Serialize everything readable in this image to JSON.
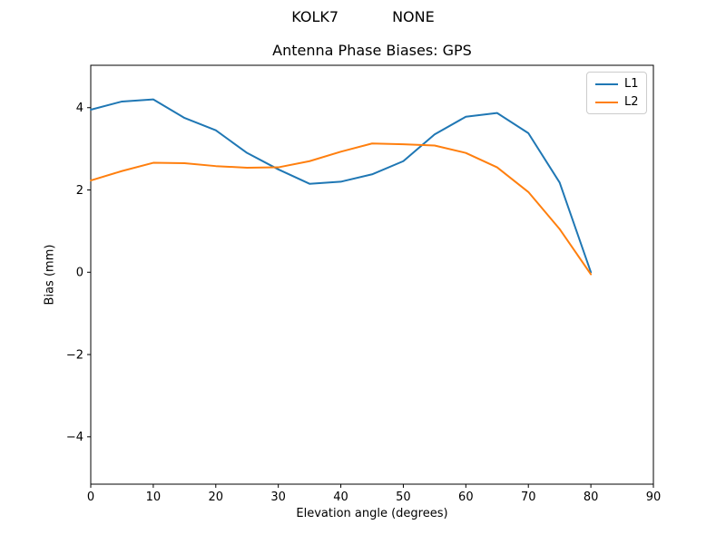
{
  "figure": {
    "suptitle_left": "KOLK7",
    "suptitle_right": "NONE",
    "axes_title": "Antenna Phase Biases: GPS",
    "xlabel": "Elevation angle (degrees)",
    "ylabel": "Bias (mm)",
    "background_color": "#ffffff"
  },
  "legend": {
    "position": "upper right",
    "items": [
      {
        "label": "L1",
        "color": "#1f77b4"
      },
      {
        "label": "L2",
        "color": "#ff7f0e"
      }
    ]
  },
  "chart_data": {
    "type": "line",
    "suptitle": "KOLK7          NONE",
    "title": "Antenna Phase Biases: GPS",
    "xlabel": "Elevation angle (degrees)",
    "ylabel": "Bias (mm)",
    "x": [
      0,
      5,
      10,
      15,
      20,
      25,
      30,
      35,
      40,
      45,
      50,
      55,
      60,
      65,
      70,
      75,
      80
    ],
    "series": [
      {
        "name": "L1",
        "color": "#1f77b4",
        "values": [
          3.95,
          4.15,
          4.2,
          3.75,
          3.45,
          2.9,
          2.5,
          2.15,
          2.2,
          2.38,
          2.7,
          3.35,
          3.78,
          3.87,
          3.38,
          2.18,
          0.0
        ]
      },
      {
        "name": "L2",
        "color": "#ff7f0e",
        "values": [
          2.23,
          2.46,
          2.66,
          2.65,
          2.58,
          2.54,
          2.55,
          2.7,
          2.93,
          3.13,
          3.11,
          3.08,
          2.9,
          2.55,
          1.95,
          1.05,
          -0.05
        ]
      }
    ],
    "xlim": [
      0,
      90
    ],
    "ylim": [
      -5.15,
      5.03
    ],
    "xticks": [
      0,
      10,
      20,
      30,
      40,
      50,
      60,
      70,
      80,
      90
    ],
    "ytick_values": [
      -4,
      -2,
      0,
      2,
      4
    ],
    "ytick_labels": [
      "−4",
      "−2",
      "0",
      "2",
      "4"
    ],
    "grid": false,
    "legend_position": "upper right",
    "axis_color": "#000000"
  }
}
